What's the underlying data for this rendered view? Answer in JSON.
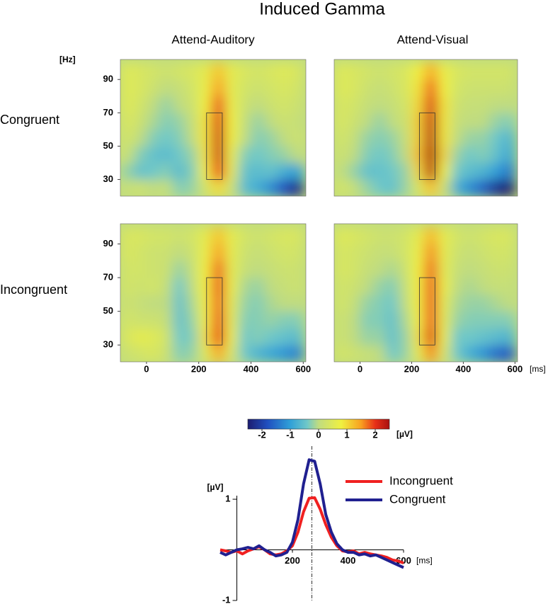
{
  "chart_data": [
    {
      "type": "heatmap-grid",
      "title": "Induced Gamma",
      "columns": [
        "Attend-Auditory",
        "Attend-Visual"
      ],
      "rows": [
        "Congruent",
        "Incongruent"
      ],
      "y_unit": "[Hz]",
      "x_unit": "[ms]",
      "xlim": [
        -100,
        610
      ],
      "xticks": [
        0,
        200,
        400,
        600
      ],
      "ylim": [
        20,
        102
      ],
      "yticks": [
        30,
        50,
        70,
        90
      ],
      "x_edges": [
        -100,
        -50,
        0,
        50,
        100,
        150,
        200,
        250,
        300,
        350,
        400,
        450,
        500,
        550,
        600
      ],
      "y_edges": [
        20,
        30,
        40,
        50,
        60,
        70,
        80,
        90,
        100
      ],
      "roi": {
        "x": [
          230,
          290
        ],
        "y": [
          30,
          70
        ]
      },
      "panels": [
        [
          [
            [
              0.1,
              0.2,
              0,
              0.1,
              -0.3,
              -0.2,
              0.3,
              1.0,
              0.2,
              -0.6,
              -0.8,
              -1.2,
              -1.8,
              -2.3
            ],
            [
              -0.2,
              -0.5,
              -0.4,
              -0.3,
              -0.6,
              -0.3,
              0.8,
              2.0,
              0.6,
              -0.5,
              -0.6,
              -0.5,
              -0.8,
              -1.0
            ],
            [
              0.2,
              -0.3,
              -0.5,
              -0.6,
              -0.4,
              -0.2,
              0.9,
              2.2,
              0.7,
              -0.3,
              -0.4,
              -0.3,
              -0.2,
              0
            ],
            [
              0.3,
              0,
              -0.3,
              -0.4,
              -0.3,
              0,
              0.9,
              2.2,
              0.8,
              0,
              -0.3,
              -0.2,
              0,
              0.2
            ],
            [
              0.4,
              0.2,
              -0.1,
              -0.3,
              -0.2,
              0.1,
              0.9,
              2.1,
              0.8,
              0.1,
              -0.2,
              0,
              0.2,
              0.1
            ],
            [
              0.5,
              0.3,
              0,
              -0.2,
              0,
              0.2,
              0.8,
              1.9,
              0.7,
              0.2,
              0,
              0.2,
              0.3,
              0.2
            ],
            [
              0.5,
              0.4,
              0.2,
              0,
              0.1,
              0.3,
              0.7,
              1.5,
              0.6,
              0.3,
              0.2,
              0.3,
              0.4,
              0.3
            ],
            [
              0.5,
              0.4,
              0.3,
              0.2,
              0.3,
              0.4,
              0.6,
              1.2,
              0.6,
              0.4,
              0.3,
              0.4,
              0.5,
              0.4
            ]
          ],
          [
            [
              0.3,
              0.1,
              -0.2,
              -0.4,
              -0.5,
              -0.2,
              0.4,
              1.2,
              0.2,
              -0.8,
              -1.2,
              -1.6,
              -2.2,
              -2.6
            ],
            [
              0.1,
              -0.2,
              -0.5,
              -0.5,
              -0.4,
              -0.2,
              1.0,
              2.4,
              0.8,
              -0.4,
              -0.6,
              -0.7,
              -1.0,
              -1.4
            ],
            [
              0.2,
              0,
              -0.3,
              -0.4,
              -0.3,
              0,
              1.2,
              2.6,
              1.0,
              -0.2,
              -0.4,
              -0.3,
              -0.5,
              -0.9
            ],
            [
              0.3,
              0.1,
              -0.2,
              -0.3,
              -0.2,
              0.1,
              1.1,
              2.4,
              0.9,
              0,
              -0.2,
              -0.2,
              -0.4,
              -0.7
            ],
            [
              0.4,
              0.2,
              0,
              -0.2,
              0,
              0.2,
              1.1,
              2.3,
              0.9,
              0.1,
              0,
              0,
              -0.2,
              -0.3
            ],
            [
              0.4,
              0.3,
              0.1,
              0,
              0.1,
              0.3,
              1.0,
              2.1,
              0.9,
              0.2,
              0.1,
              0.1,
              0,
              0
            ],
            [
              0.5,
              0.4,
              0.2,
              0.1,
              0.2,
              0.4,
              0.9,
              1.8,
              0.8,
              0.3,
              0.2,
              0.2,
              0.2,
              0.2
            ],
            [
              0.5,
              0.4,
              0.3,
              0.2,
              0.3,
              0.4,
              0.8,
              1.4,
              0.7,
              0.4,
              0.3,
              0.3,
              0.3,
              0.3
            ]
          ]
        ],
        [
          [
            [
              0.2,
              0.3,
              0.4,
              0.2,
              -0.3,
              -0.2,
              0.5,
              1.4,
              0.4,
              -0.4,
              -0.7,
              -0.9,
              -1.1,
              -1.3
            ],
            [
              0.4,
              0.6,
              0.5,
              0.3,
              -0.4,
              -0.3,
              0.9,
              2.0,
              0.7,
              -0.4,
              -0.3,
              -0.4,
              -0.5,
              -0.6
            ],
            [
              0.3,
              0.2,
              0.2,
              0.1,
              -0.5,
              -0.2,
              0.8,
              1.9,
              0.6,
              -0.3,
              -0.3,
              -0.2,
              -0.3,
              -0.3
            ],
            [
              0.2,
              0.1,
              0,
              0,
              -0.5,
              -0.1,
              0.8,
              1.8,
              0.6,
              -0.2,
              -0.3,
              -0.1,
              0,
              0
            ],
            [
              0.3,
              0.2,
              0.3,
              0.1,
              -0.4,
              0,
              0.8,
              1.9,
              0.7,
              -0.1,
              -0.2,
              0,
              0.1,
              0.2
            ],
            [
              0.3,
              0.3,
              0.2,
              0.2,
              -0.2,
              0.1,
              0.8,
              1.8,
              0.6,
              0.1,
              0,
              0.1,
              0.2,
              0.2
            ],
            [
              0.4,
              0.3,
              0.2,
              0.2,
              0,
              0.2,
              0.7,
              1.5,
              0.6,
              0.2,
              0.1,
              0.2,
              0.3,
              0.3
            ],
            [
              0.4,
              0.4,
              0.3,
              0.3,
              0.2,
              0.3,
              0.6,
              1.2,
              0.6,
              0.3,
              0.2,
              0.3,
              0.4,
              0.4
            ]
          ],
          [
            [
              0.3,
              0.2,
              0.1,
              0,
              -0.4,
              -0.2,
              0.6,
              1.6,
              0.4,
              -0.4,
              -0.8,
              -1.1,
              -1.5,
              -1.7
            ],
            [
              0.2,
              0,
              -0.2,
              -0.2,
              -0.5,
              -0.2,
              0.9,
              2.1,
              0.7,
              -0.4,
              -0.4,
              -0.5,
              -0.6,
              -0.7
            ],
            [
              0.2,
              0,
              -0.3,
              -0.3,
              -0.5,
              -0.1,
              0.8,
              1.9,
              0.6,
              -0.2,
              -0.3,
              -0.3,
              -0.3,
              -0.3
            ],
            [
              0.3,
              0.1,
              -0.2,
              -0.3,
              -0.4,
              0,
              0.8,
              1.9,
              0.6,
              -0.1,
              -0.2,
              -0.2,
              -0.1,
              0
            ],
            [
              0.3,
              0.2,
              0,
              -0.2,
              -0.3,
              0.1,
              0.8,
              1.9,
              0.7,
              0,
              -0.1,
              0,
              0.1,
              0.1
            ],
            [
              0.4,
              0.3,
              0.1,
              0,
              -0.1,
              0.2,
              0.8,
              1.8,
              0.6,
              0.1,
              0,
              0.1,
              0.2,
              0.2
            ],
            [
              0.4,
              0.3,
              0.2,
              0.1,
              0.1,
              0.3,
              0.7,
              1.6,
              0.6,
              0.2,
              0.1,
              0.2,
              0.3,
              0.3
            ],
            [
              0.5,
              0.4,
              0.3,
              0.2,
              0.2,
              0.3,
              0.6,
              1.3,
              0.6,
              0.3,
              0.2,
              0.3,
              0.4,
              0.4
            ]
          ]
        ]
      ],
      "colorbar": {
        "lim": [
          -2.5,
          2.5
        ],
        "ticks": [
          -2,
          -1,
          0,
          1,
          2
        ],
        "unit": "[µV]",
        "stops": [
          -2.5,
          -1.8,
          -1,
          -0.4,
          0,
          0.8,
          1.5,
          2,
          2.5
        ],
        "colors": [
          "#1c1c70",
          "#2050c0",
          "#30a0d8",
          "#70c8c8",
          "#c0dc80",
          "#f0f040",
          "#f8a020",
          "#e83018",
          "#a81010"
        ]
      }
    },
    {
      "type": "line",
      "xlim": [
        -60,
        600
      ],
      "xticks": [
        200,
        400,
        600
      ],
      "x_unit": "[ms]",
      "ylim": [
        -1,
        2.05
      ],
      "yticks": [
        -1,
        1
      ],
      "y_unit": "[µV]",
      "vline": 270,
      "x": [
        -60,
        -40,
        -20,
        0,
        20,
        40,
        60,
        80,
        100,
        120,
        140,
        160,
        180,
        200,
        220,
        240,
        260,
        280,
        300,
        320,
        340,
        360,
        380,
        400,
        420,
        440,
        460,
        480,
        500,
        520,
        540,
        560,
        580,
        600
      ],
      "series": [
        {
          "name": "Incongruent",
          "color": "#f02020",
          "values": [
            0,
            -0.02,
            -0.05,
            -0.02,
            -0.08,
            -0.02,
            0.02,
            0.06,
            0,
            -0.08,
            -0.1,
            -0.08,
            -0.02,
            0.08,
            0.35,
            0.75,
            1.02,
            1.03,
            0.8,
            0.5,
            0.25,
            0.08,
            -0.02,
            -0.04,
            -0.02,
            -0.08,
            -0.05,
            -0.08,
            -0.1,
            -0.12,
            -0.15,
            -0.2,
            -0.22,
            -0.26
          ]
        },
        {
          "name": "Congruent",
          "color": "#202090",
          "values": [
            -0.05,
            -0.1,
            -0.05,
            0,
            0.02,
            0.05,
            0.02,
            0.08,
            0,
            -0.05,
            -0.12,
            -0.1,
            -0.05,
            0.15,
            0.6,
            1.3,
            1.78,
            1.75,
            1.3,
            0.7,
            0.35,
            0.12,
            0,
            -0.05,
            -0.05,
            -0.1,
            -0.08,
            -0.12,
            -0.1,
            -0.15,
            -0.2,
            -0.25,
            -0.3,
            -0.35
          ]
        }
      ]
    }
  ]
}
